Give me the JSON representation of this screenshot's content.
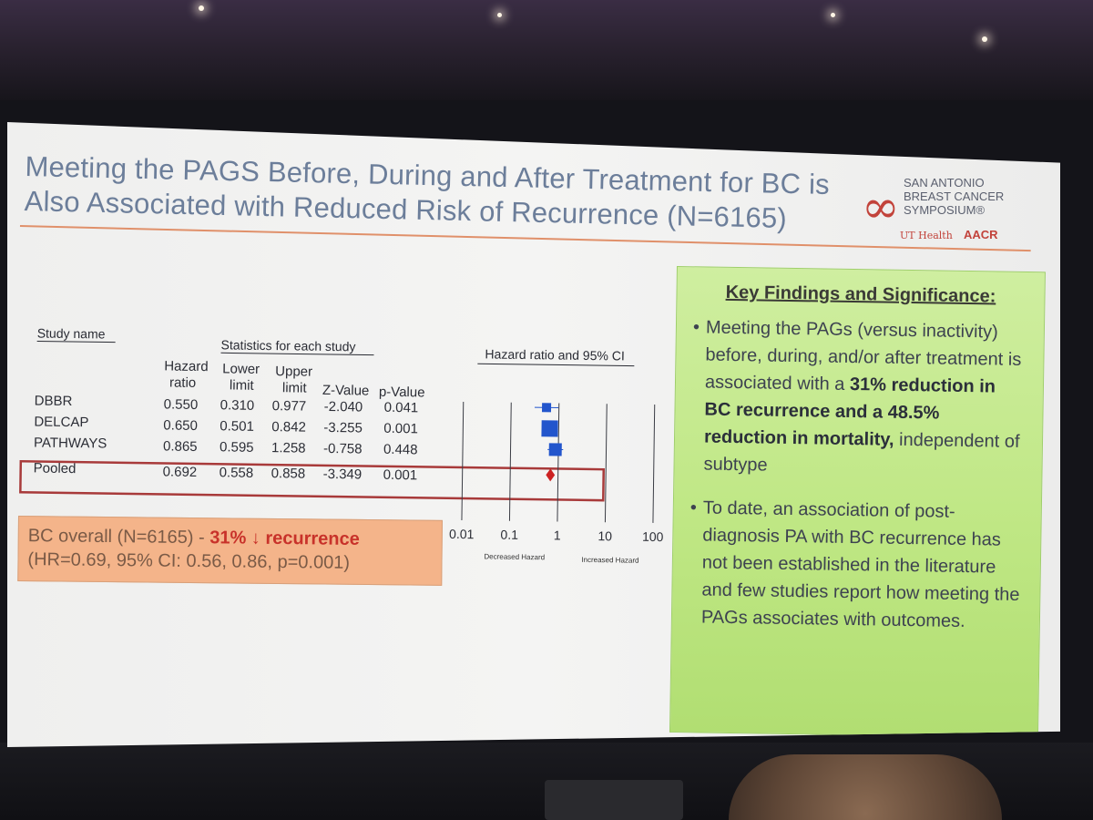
{
  "slide": {
    "title_line1": "Meeting the PAGS Before, During and After Treatment for BC is",
    "title_line2": "Also Associated with Reduced Risk of Recurrence (N=6165)",
    "logo": {
      "line1": "SAN ANTONIO",
      "line2": "BREAST CANCER",
      "line3": "SYMPOSIUM®",
      "ut": "UT Health",
      "aacr": "AACR"
    }
  },
  "table": {
    "study_name_header": "Study name",
    "stats_header": "Statistics for each study",
    "plot_header": "Hazard ratio and 95% CI",
    "col_hr_1": "Hazard",
    "col_hr_2": "ratio",
    "col_lower_1": "Lower",
    "col_lower_2": "limit",
    "col_upper_1": "Upper",
    "col_upper_2": "limit",
    "col_z": "Z-Value",
    "col_p": "p-Value",
    "rows": [
      {
        "name": "DBBR",
        "hr": "0.550",
        "lower": "0.310",
        "upper": "0.977",
        "z": "-2.040",
        "p": "0.041"
      },
      {
        "name": "DELCAP",
        "hr": "0.650",
        "lower": "0.501",
        "upper": "0.842",
        "z": "-3.255",
        "p": "0.001"
      },
      {
        "name": "PATHWAYS",
        "hr": "0.865",
        "lower": "0.595",
        "upper": "1.258",
        "z": "-0.758",
        "p": "0.448"
      },
      {
        "name": "Pooled",
        "hr": "0.692",
        "lower": "0.558",
        "upper": "0.858",
        "z": "-3.349",
        "p": "0.001"
      }
    ],
    "axis_ticks": [
      "0.01",
      "0.1",
      "1",
      "10",
      "100"
    ],
    "decreased_label": "Decreased Hazard",
    "increased_label": "Increased Hazard"
  },
  "chart_data": {
    "type": "scatter",
    "x_scale": "log",
    "xlim": [
      0.01,
      100
    ],
    "x_ticks": [
      0.01,
      0.1,
      1,
      10,
      100
    ],
    "series": [
      {
        "name": "DBBR",
        "values": [
          0.55
        ],
        "lower": 0.31,
        "upper": 0.977,
        "weight": 1
      },
      {
        "name": "DELCAP",
        "values": [
          0.65
        ],
        "lower": 0.501,
        "upper": 0.842,
        "weight": 3
      },
      {
        "name": "PATHWAYS",
        "values": [
          0.865
        ],
        "lower": 0.595,
        "upper": 1.258,
        "weight": 2
      },
      {
        "name": "Pooled",
        "values": [
          0.692
        ],
        "lower": 0.558,
        "upper": 0.858,
        "weight": 0
      }
    ],
    "colors": {
      "study": "#2255cc",
      "pooled": "#cc2222",
      "highlight": "#a83a3a"
    }
  },
  "summary": {
    "prefix": "BC overall (N=6165) - ",
    "emphasis": "31% ↓ recurrence",
    "line2": "(HR=0.69, 95% CI: 0.56, 0.86, p=0.001)"
  },
  "findings": {
    "heading": "Key Findings  and Significance",
    "heading_suffix": ":",
    "b1_a": "Meeting the PAGs (versus inactivity) before, during, and/or after treatment is associated with a ",
    "b1_bold": "31% reduction in BC recurrence and a 48.5% reduction in mortality,",
    "b1_c": " independent of subtype",
    "b2": "To date, an association of post-diagnosis PA with BC recurrence has not been established in the literature and few studies report how meeting the PAGs associates with outcomes."
  }
}
